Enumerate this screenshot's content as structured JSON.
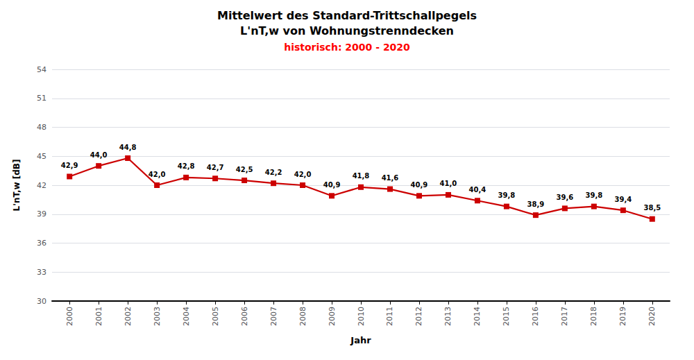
{
  "chart_data": {
    "type": "line",
    "title": "Mittelwert des Standard-Trittschallpegels\nL'nT,w von Wohnungstrenndecken",
    "subtitle": "historisch: 2000 - 2020",
    "xlabel": "Jahr",
    "ylabel": "L'nT,w [dB]",
    "x": [
      2000,
      2001,
      2002,
      2003,
      2004,
      2005,
      2006,
      2007,
      2008,
      2009,
      2010,
      2011,
      2012,
      2013,
      2014,
      2015,
      2016,
      2017,
      2018,
      2019,
      2020
    ],
    "values": [
      42.9,
      44.0,
      44.8,
      42.0,
      42.8,
      42.7,
      42.5,
      42.2,
      42.0,
      40.9,
      41.8,
      41.6,
      40.9,
      41.0,
      40.4,
      39.8,
      38.9,
      39.6,
      39.8,
      39.4,
      38.5
    ],
    "value_labels": [
      "42,9",
      "44,0",
      "44,8",
      "42,0",
      "42,8",
      "42,7",
      "42,5",
      "42,2",
      "42,0",
      "40,9",
      "41,8",
      "41,6",
      "40,9",
      "41,0",
      "40,4",
      "39,8",
      "38,9",
      "39,6",
      "39,8",
      "39,4",
      "38,5"
    ],
    "data_labels": true,
    "color": "#cc0000",
    "marker": "square",
    "xlim": [
      1999.4,
      2020.6
    ],
    "xticks": [
      2000,
      2001,
      2002,
      2003,
      2004,
      2005,
      2006,
      2007,
      2008,
      2009,
      2010,
      2011,
      2012,
      2013,
      2014,
      2015,
      2016,
      2017,
      2018,
      2019,
      2020
    ],
    "ylim": [
      30,
      54
    ],
    "yticks": [
      30,
      33,
      36,
      39,
      42,
      45,
      48,
      51,
      54
    ],
    "grid": true
  }
}
